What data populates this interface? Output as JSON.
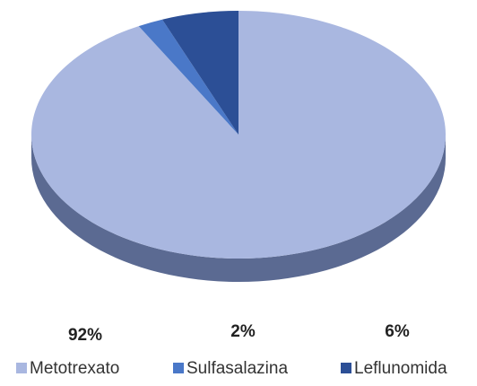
{
  "chart_data": {
    "type": "pie",
    "categories": [
      "Metotrexato",
      "Sulfasalazina",
      "Leflunomida"
    ],
    "values": [
      92,
      2,
      6
    ],
    "value_labels": [
      "92%",
      "2%",
      "6%"
    ],
    "colors": [
      "#a9b7e0",
      "#4a78c8",
      "#2c4f96"
    ],
    "legend": "bottom"
  }
}
